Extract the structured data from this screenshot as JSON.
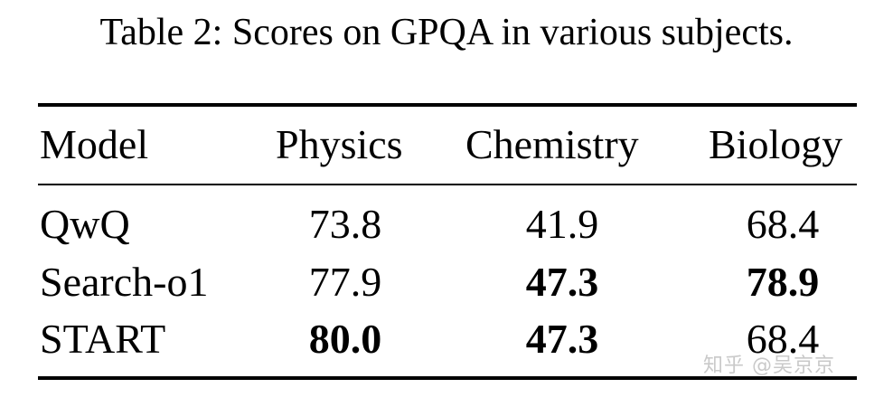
{
  "caption": "Table 2: Scores on GPQA in various subjects.",
  "table": {
    "headers": [
      "Model",
      "Physics",
      "Chemistry",
      "Biology"
    ],
    "rows": [
      {
        "model": "QwQ",
        "physics": "73.8",
        "chemistry": "41.9",
        "biology": "68.4",
        "bold": {
          "physics": false,
          "chemistry": false,
          "biology": false
        }
      },
      {
        "model": "Search-o1",
        "physics": "77.9",
        "chemistry": "47.3",
        "biology": "78.9",
        "bold": {
          "physics": false,
          "chemistry": true,
          "biology": true
        }
      },
      {
        "model": "START",
        "physics": "80.0",
        "chemistry": "47.3",
        "biology": "68.4",
        "bold": {
          "physics": true,
          "chemistry": true,
          "biology": false
        }
      }
    ]
  },
  "watermark": "知乎 @吴京京"
}
